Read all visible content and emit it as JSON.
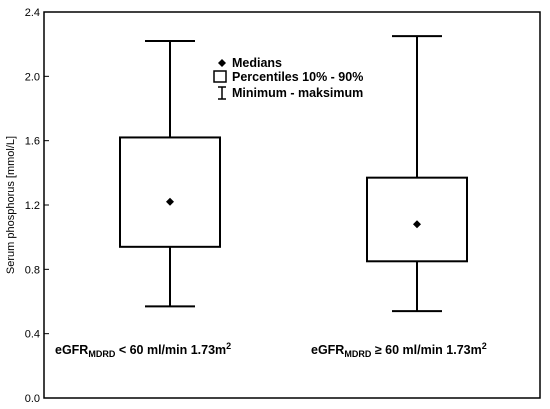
{
  "chart_data": {
    "type": "boxplot",
    "ylabel": "Serum phosphorus [mmol/L]",
    "ylim": [
      0.0,
      2.4
    ],
    "yticks": [
      "0.0",
      "0.4",
      "0.8",
      "1.2",
      "1.6",
      "2.0",
      "2.4"
    ],
    "grid": false,
    "legend_position": "top-center",
    "legend": [
      {
        "marker": "diamond",
        "label": "Medians"
      },
      {
        "marker": "box",
        "label": "Percentiles 10% - 90%"
      },
      {
        "marker": "whisker",
        "label": "Minimum - maksimum"
      }
    ],
    "groups": [
      {
        "label": {
          "pre": "eGFR",
          "sub": "MDRD",
          "post": " < 60 ml/min 1.73m",
          "sup": "2"
        },
        "median": 1.22,
        "p10": 0.94,
        "p90": 1.62,
        "min": 0.57,
        "max": 2.22
      },
      {
        "label": {
          "pre": "eGFR",
          "sub": "MDRD",
          "post": " ≥ 60 ml/min 1.73m",
          "sup": "2"
        },
        "median": 1.08,
        "p10": 0.85,
        "p90": 1.37,
        "min": 0.54,
        "max": 2.25
      }
    ]
  }
}
